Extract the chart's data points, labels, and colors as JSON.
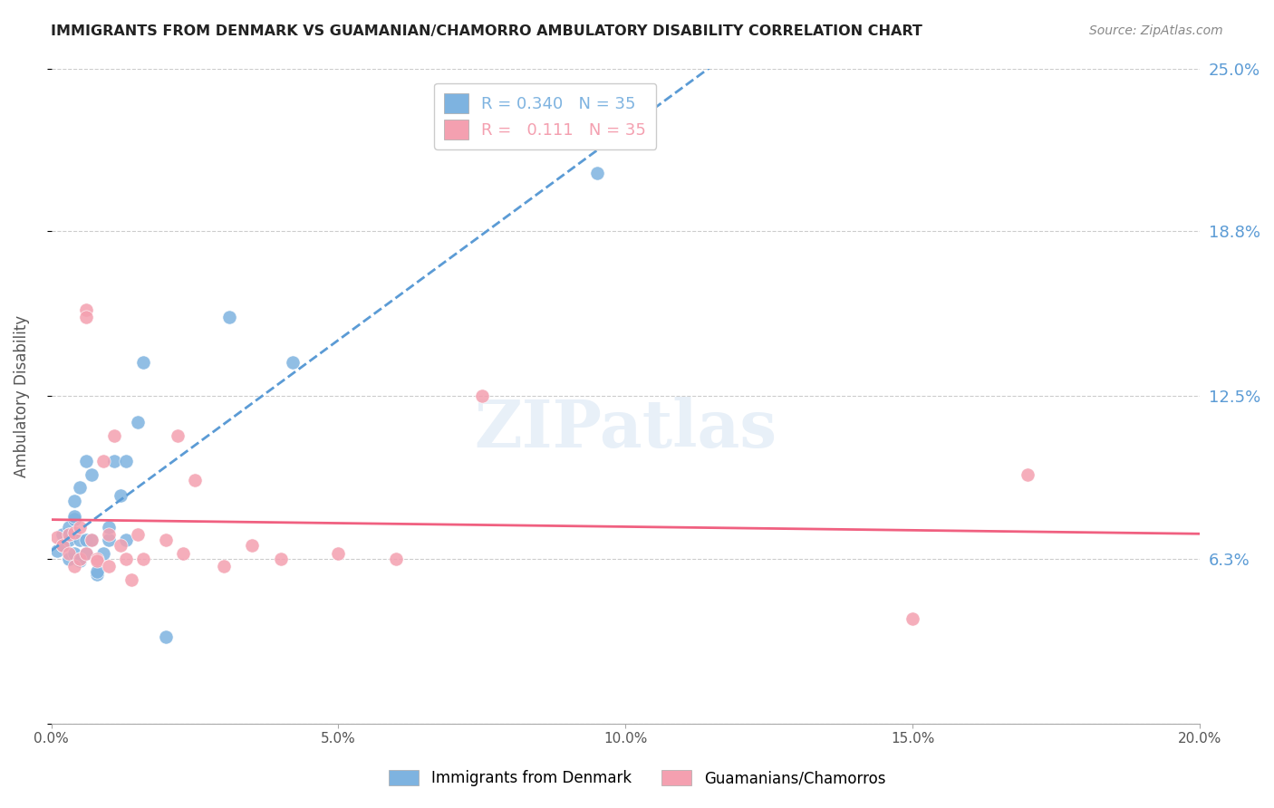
{
  "title": "IMMIGRANTS FROM DENMARK VS GUAMANIAN/CHAMORRO AMBULATORY DISABILITY CORRELATION CHART",
  "source": "Source: ZipAtlas.com",
  "ylabel": "Ambulatory Disability",
  "ytick_vals": [
    0.0,
    0.063,
    0.125,
    0.188,
    0.25
  ],
  "ytick_labels": [
    "",
    "6.3%",
    "12.5%",
    "18.8%",
    "25.0%"
  ],
  "xtick_vals": [
    0.0,
    0.05,
    0.1,
    0.15,
    0.2
  ],
  "xtick_labels": [
    "0.0%",
    "5.0%",
    "10.0%",
    "15.0%",
    "20.0%"
  ],
  "r_denmark": "0.340",
  "n_denmark": "35",
  "r_guam": "0.111",
  "n_guam": "35",
  "legend_denmark": "Immigrants from Denmark",
  "legend_guam": "Guamanians/Chamorros",
  "color_denmark": "#7eb3e0",
  "color_guam": "#f4a0b0",
  "trendline_denmark_color": "#5b9bd5",
  "trendline_guam_color": "#f06080",
  "watermark": "ZIPatlas",
  "xmin": 0.0,
  "xmax": 0.2,
  "ymin": 0.0,
  "ymax": 0.25,
  "denmark_x": [
    0.001,
    0.002,
    0.002,
    0.003,
    0.003,
    0.003,
    0.003,
    0.004,
    0.004,
    0.004,
    0.004,
    0.005,
    0.005,
    0.005,
    0.005,
    0.006,
    0.006,
    0.006,
    0.007,
    0.007,
    0.008,
    0.008,
    0.009,
    0.01,
    0.01,
    0.011,
    0.012,
    0.013,
    0.013,
    0.015,
    0.016,
    0.02,
    0.031,
    0.042,
    0.095
  ],
  "denmark_y": [
    0.066,
    0.068,
    0.072,
    0.07,
    0.075,
    0.072,
    0.063,
    0.065,
    0.078,
    0.079,
    0.085,
    0.062,
    0.063,
    0.07,
    0.09,
    0.065,
    0.07,
    0.1,
    0.07,
    0.095,
    0.057,
    0.058,
    0.065,
    0.07,
    0.075,
    0.1,
    0.087,
    0.1,
    0.07,
    0.115,
    0.138,
    0.033,
    0.155,
    0.138,
    0.21
  ],
  "guam_x": [
    0.001,
    0.002,
    0.003,
    0.003,
    0.004,
    0.004,
    0.005,
    0.005,
    0.006,
    0.006,
    0.006,
    0.007,
    0.008,
    0.008,
    0.009,
    0.01,
    0.01,
    0.011,
    0.012,
    0.013,
    0.014,
    0.015,
    0.016,
    0.02,
    0.022,
    0.023,
    0.025,
    0.03,
    0.035,
    0.04,
    0.05,
    0.06,
    0.075,
    0.15,
    0.17
  ],
  "guam_y": [
    0.071,
    0.068,
    0.072,
    0.065,
    0.073,
    0.06,
    0.075,
    0.063,
    0.158,
    0.155,
    0.065,
    0.07,
    0.063,
    0.062,
    0.1,
    0.06,
    0.072,
    0.11,
    0.068,
    0.063,
    0.055,
    0.072,
    0.063,
    0.07,
    0.11,
    0.065,
    0.093,
    0.06,
    0.068,
    0.063,
    0.065,
    0.063,
    0.125,
    0.04,
    0.095
  ]
}
